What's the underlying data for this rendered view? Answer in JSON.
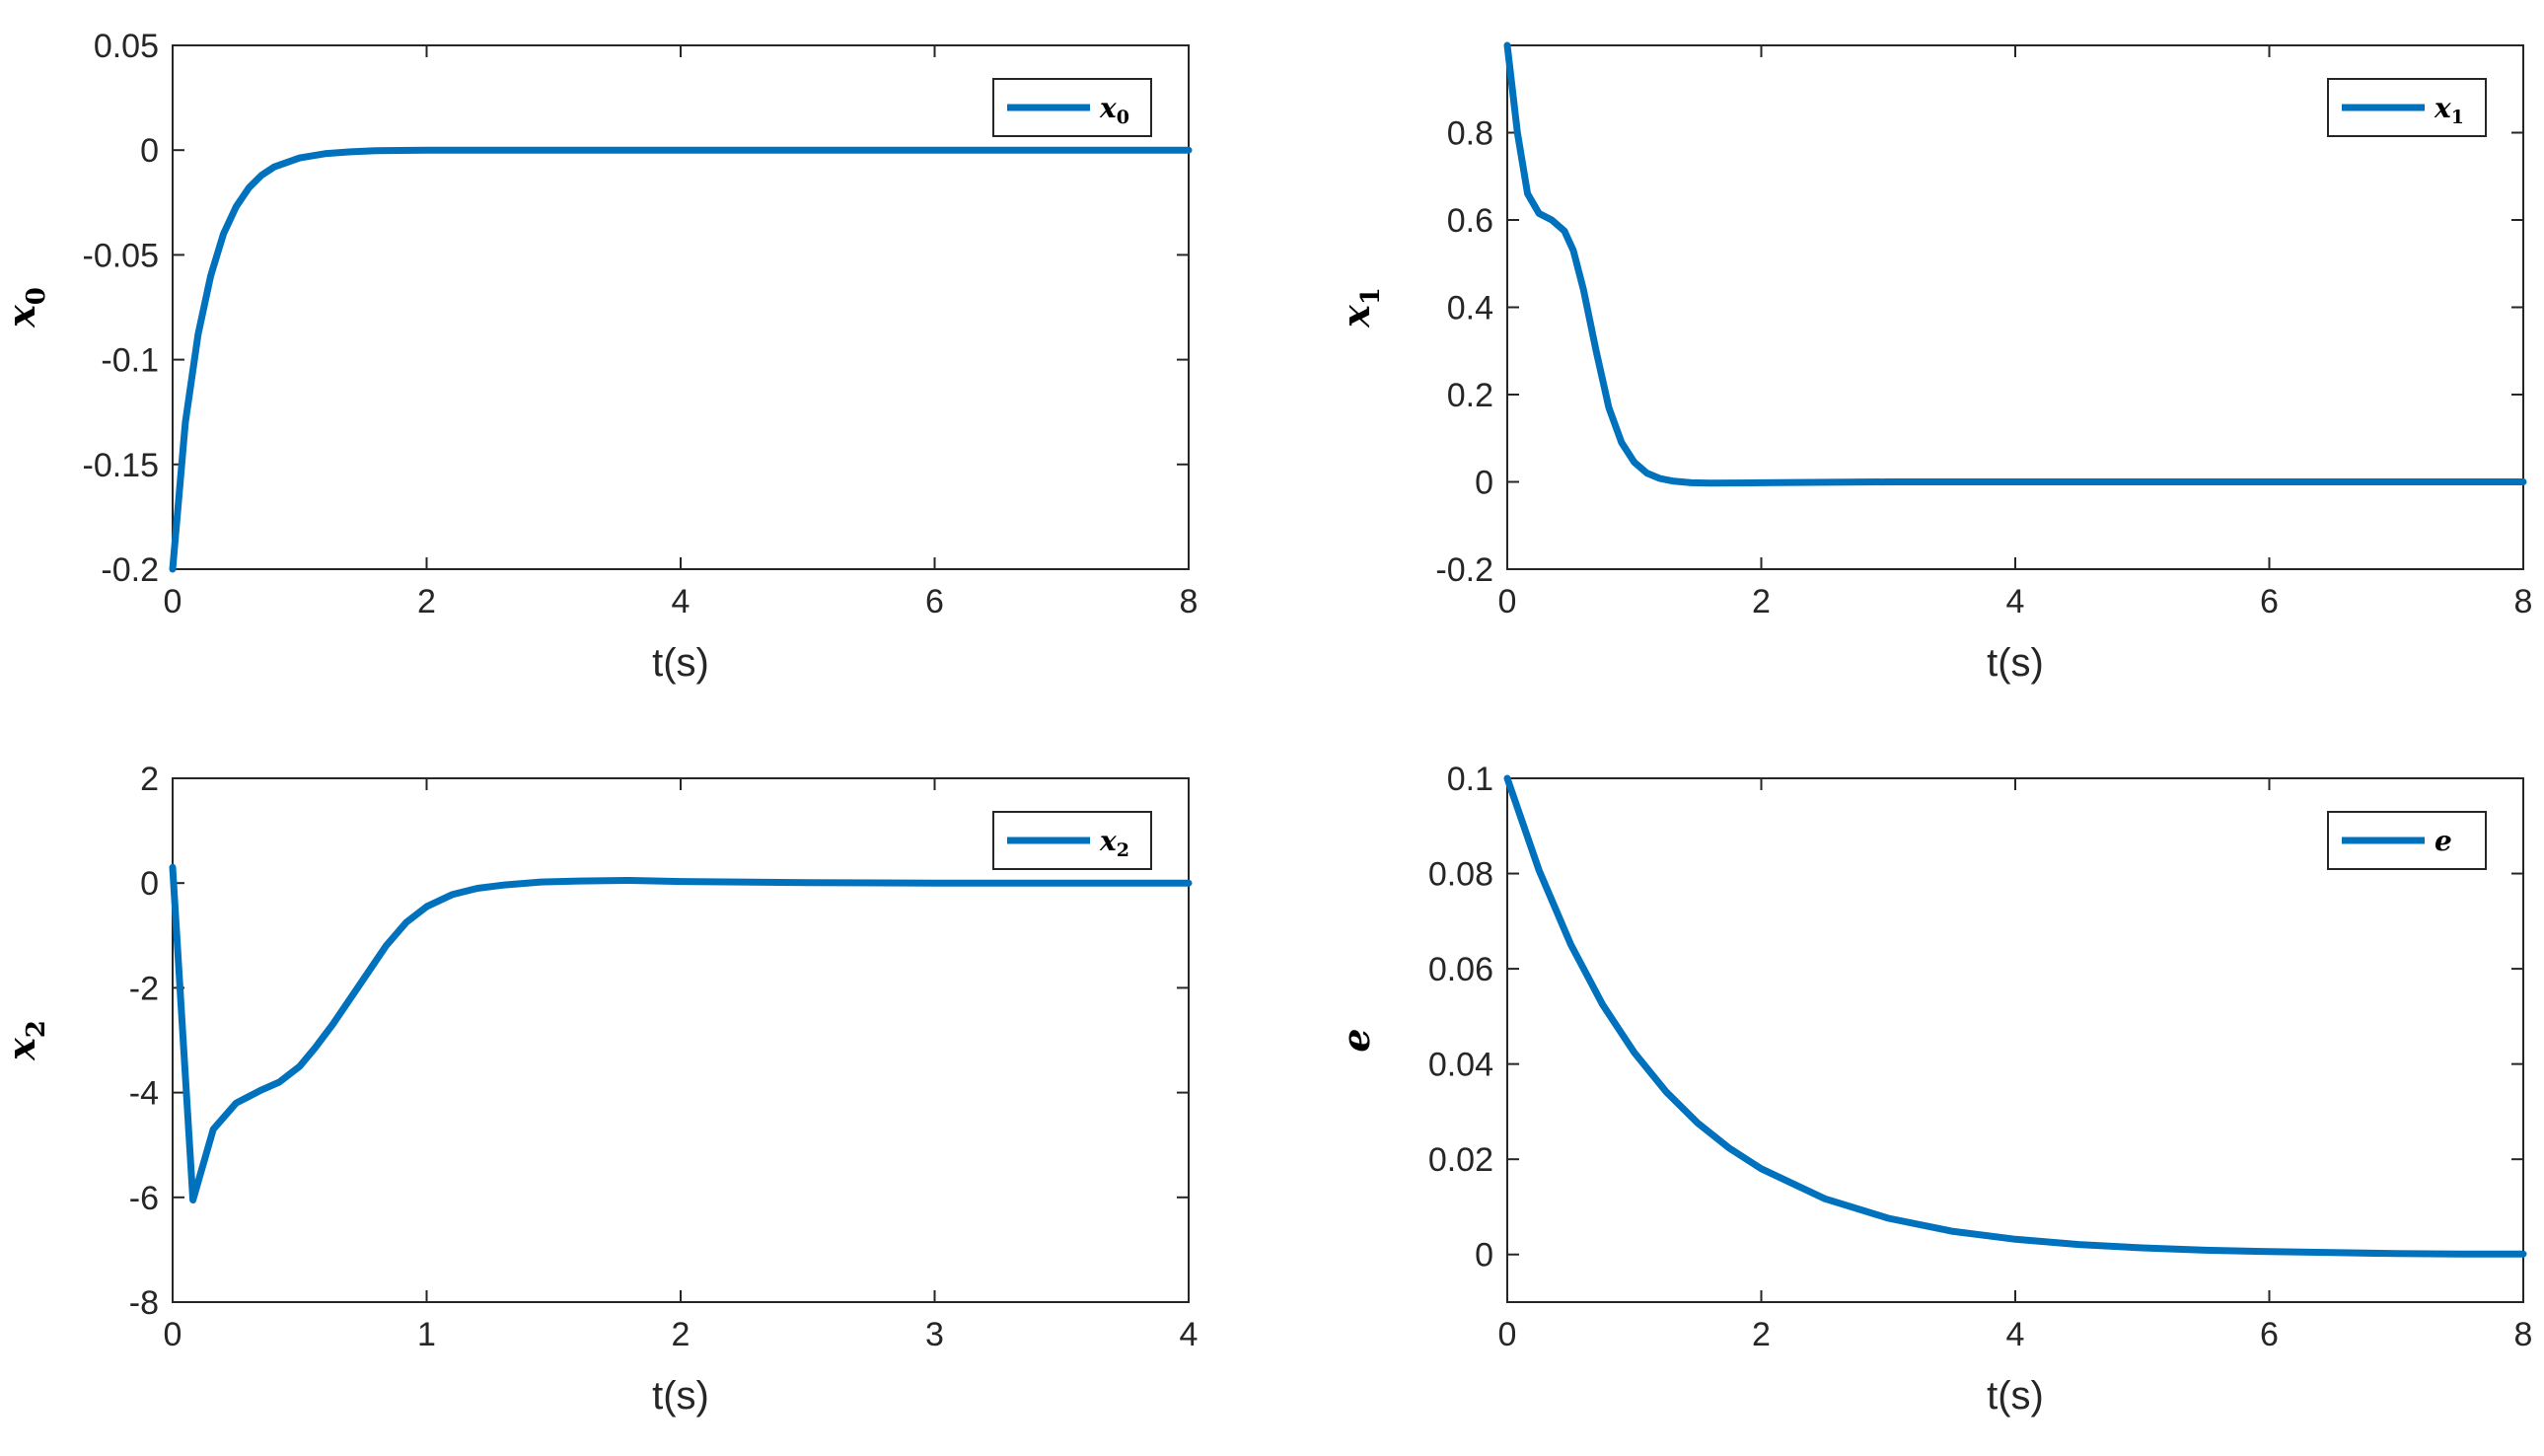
{
  "figure": {
    "line_color": "#0072BD"
  },
  "chart_data": [
    {
      "type": "line",
      "xlabel": "t(s)",
      "ylabel": "x0",
      "ylabel_sub": "0",
      "ylabel_base": "x",
      "xlim": [
        0,
        8
      ],
      "ylim": [
        -0.2,
        0.05
      ],
      "xticks": [
        0,
        2,
        4,
        6,
        8
      ],
      "xtick_labels": [
        "0",
        "2",
        "4",
        "6",
        "8"
      ],
      "yticks": [
        -0.2,
        -0.15,
        -0.1,
        -0.05,
        0,
        0.05
      ],
      "ytick_labels": [
        "-0.2",
        "-0.15",
        "-0.1",
        "-0.05",
        "0",
        "0.05"
      ],
      "grid": false,
      "legend_position": "top-right",
      "series": [
        {
          "name": "x0",
          "name_base": "x",
          "name_sub": "0",
          "x": [
            0,
            0.1,
            0.2,
            0.3,
            0.4,
            0.5,
            0.6,
            0.7,
            0.8,
            1.0,
            1.2,
            1.4,
            1.6,
            2.0,
            2.5,
            3,
            4,
            5,
            6,
            7,
            8
          ],
          "y": [
            -0.2,
            -0.13,
            -0.088,
            -0.06,
            -0.04,
            -0.027,
            -0.018,
            -0.012,
            -0.008,
            -0.0037,
            -0.0017,
            -0.0008,
            -0.0003,
            0,
            0,
            0,
            0,
            0,
            0,
            0,
            0
          ]
        }
      ]
    },
    {
      "type": "line",
      "xlabel": "t(s)",
      "ylabel": "x1",
      "ylabel_sub": "1",
      "ylabel_base": "x",
      "xlim": [
        0,
        8
      ],
      "ylim": [
        -0.2,
        1.0
      ],
      "xticks": [
        0,
        2,
        4,
        6,
        8
      ],
      "xtick_labels": [
        "0",
        "2",
        "4",
        "6",
        "8"
      ],
      "yticks": [
        -0.2,
        0,
        0.2,
        0.4,
        0.6,
        0.8
      ],
      "ytick_labels": [
        "-0.2",
        "0",
        "0.2",
        "0.4",
        "0.6",
        "0.8"
      ],
      "grid": false,
      "legend_position": "top-right",
      "series": [
        {
          "name": "x1",
          "name_base": "x",
          "name_sub": "1",
          "x": [
            0,
            0.08,
            0.16,
            0.25,
            0.35,
            0.45,
            0.52,
            0.6,
            0.7,
            0.8,
            0.9,
            1.0,
            1.1,
            1.2,
            1.3,
            1.45,
            1.6,
            2.0,
            3,
            4,
            5,
            6,
            7,
            8
          ],
          "y": [
            1.0,
            0.8,
            0.66,
            0.615,
            0.6,
            0.575,
            0.53,
            0.44,
            0.3,
            0.17,
            0.09,
            0.045,
            0.02,
            0.008,
            0.002,
            -0.002,
            -0.003,
            -0.002,
            0,
            0,
            0,
            0,
            0,
            0
          ]
        }
      ]
    },
    {
      "type": "line",
      "xlabel": "t(s)",
      "ylabel": "x2",
      "ylabel_sub": "2",
      "ylabel_base": "x",
      "xlim": [
        0,
        4
      ],
      "ylim": [
        -8,
        2
      ],
      "xticks": [
        0,
        1,
        2,
        3,
        4
      ],
      "xtick_labels": [
        "0",
        "1",
        "2",
        "3",
        "4"
      ],
      "yticks": [
        -8,
        -6,
        -4,
        -2,
        0,
        2
      ],
      "ytick_labels": [
        "-8",
        "-6",
        "-4",
        "-2",
        "0",
        "2"
      ],
      "grid": false,
      "legend_position": "top-right",
      "series": [
        {
          "name": "x2",
          "name_base": "x",
          "name_sub": "2",
          "x": [
            0,
            0.08,
            0.16,
            0.25,
            0.35,
            0.42,
            0.5,
            0.56,
            0.63,
            0.7,
            0.77,
            0.84,
            0.92,
            1.0,
            1.1,
            1.2,
            1.3,
            1.45,
            1.6,
            1.8,
            2.0,
            2.5,
            3.0,
            3.5,
            4.0
          ],
          "y": [
            0.3,
            -6.05,
            -4.7,
            -4.2,
            -3.95,
            -3.8,
            -3.5,
            -3.15,
            -2.7,
            -2.2,
            -1.7,
            -1.2,
            -0.75,
            -0.45,
            -0.22,
            -0.1,
            -0.04,
            0.02,
            0.04,
            0.05,
            0.03,
            0.01,
            0,
            0,
            0
          ]
        }
      ]
    },
    {
      "type": "line",
      "xlabel": "t(s)",
      "ylabel": "e",
      "ylabel_sub": "",
      "ylabel_base": "e",
      "xlim": [
        0,
        8
      ],
      "ylim": [
        -0.01,
        0.1
      ],
      "xticks": [
        0,
        2,
        4,
        6,
        8
      ],
      "xtick_labels": [
        "0",
        "2",
        "4",
        "6",
        "8"
      ],
      "yticks": [
        0,
        0.02,
        0.04,
        0.06,
        0.08,
        0.1
      ],
      "ytick_labels": [
        "0",
        "0.02",
        "0.04",
        "0.06",
        "0.08",
        "0.1"
      ],
      "grid": false,
      "legend_position": "top-right",
      "series": [
        {
          "name": "e",
          "name_base": "e",
          "name_sub": "",
          "x": [
            0,
            0.25,
            0.5,
            0.75,
            1.0,
            1.25,
            1.5,
            1.75,
            2.0,
            2.5,
            3.0,
            3.5,
            4.0,
            4.5,
            5.0,
            5.5,
            6.0,
            6.5,
            7.0,
            7.5,
            8.0
          ],
          "y": [
            0.1,
            0.0807,
            0.0651,
            0.0525,
            0.0424,
            0.0342,
            0.0276,
            0.0223,
            0.018,
            0.0117,
            0.0076,
            0.0049,
            0.0032,
            0.0021,
            0.0014,
            0.0009,
            0.0006,
            0.0004,
            0.0002,
            0.0001,
            0.0001
          ]
        }
      ]
    }
  ]
}
